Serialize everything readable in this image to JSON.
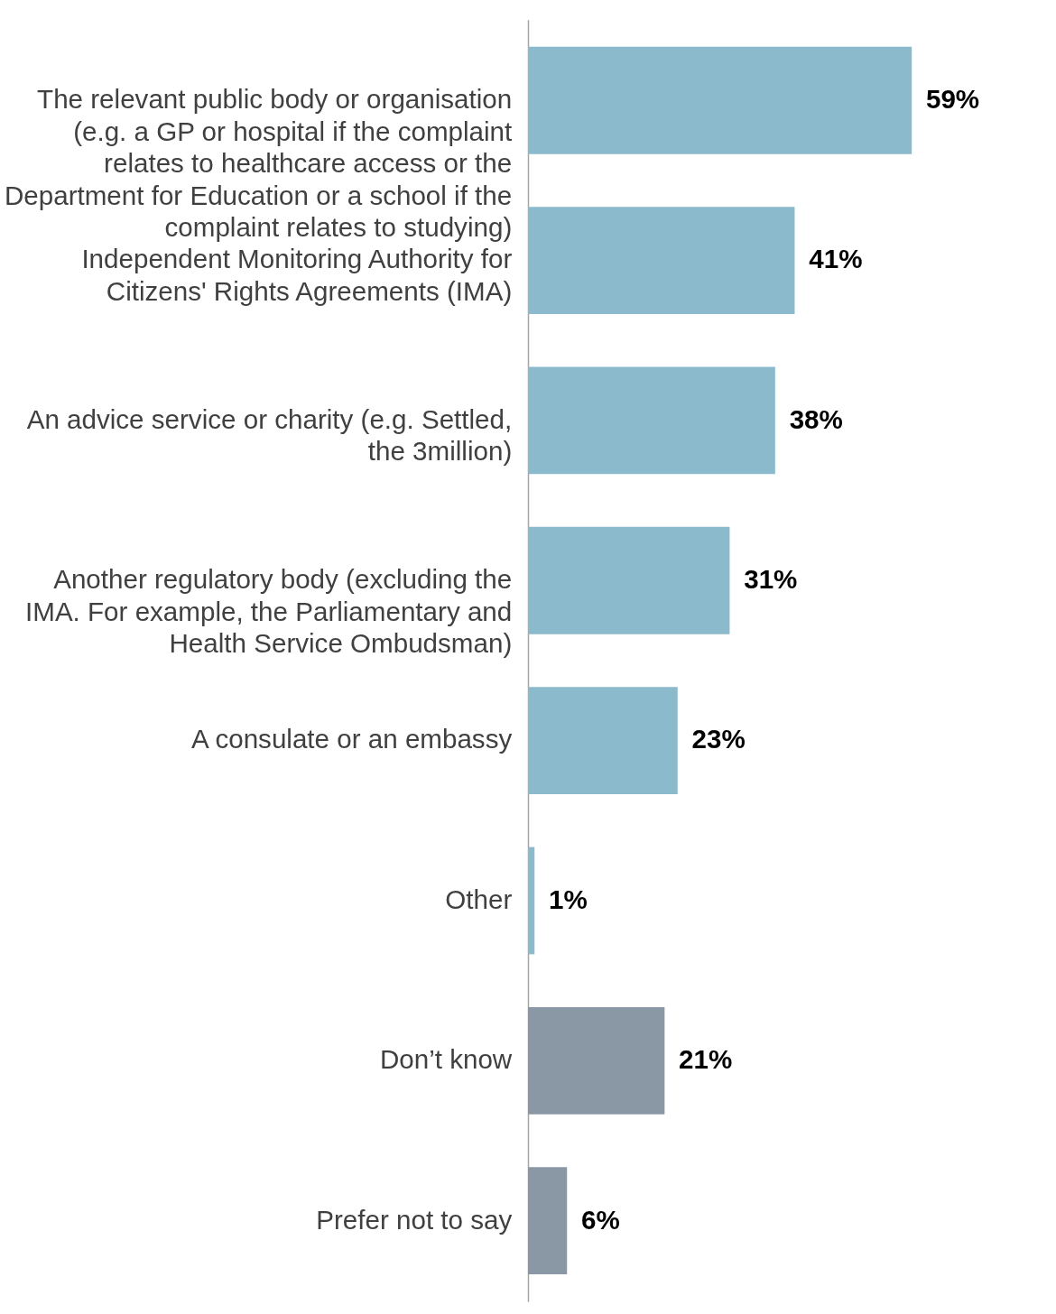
{
  "chart_data": {
    "type": "bar",
    "orientation": "horizontal",
    "categories": [
      "The relevant public body or organisation\n(e.g. a GP or hospital if the complaint\nrelates to healthcare access or the\nDepartment for Education or a school if the\ncomplaint relates to studying)",
      "Independent Monitoring Authority for\nCitizens' Rights Agreements (IMA)",
      "An advice service or charity (e.g. Settled,\nthe 3million)",
      "Another regulatory body (excluding the\nIMA. For example, the Parliamentary and\nHealth Service Ombudsman)",
      "A consulate or an embassy",
      "Other",
      "Don’t know",
      "Prefer not to say"
    ],
    "values": [
      59,
      41,
      38,
      31,
      23,
      1,
      21,
      6
    ],
    "colors": [
      "#8cbacd",
      "#8cbacd",
      "#8cbacd",
      "#8cbacd",
      "#8cbacd",
      "#8cbacd",
      "#8a98a6",
      "#8a98a6"
    ],
    "value_labels": [
      "59%",
      "41%",
      "38%",
      "31%",
      "23%",
      "1%",
      "21%",
      "6%"
    ]
  }
}
